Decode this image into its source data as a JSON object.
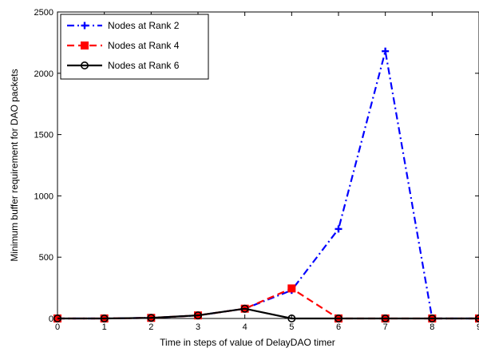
{
  "chart_data": {
    "type": "line",
    "title": "",
    "xlabel": "Time in steps of value of DelayDAO timer",
    "ylabel": "Minimum buffer requirement for DAO packets",
    "xlim": [
      0,
      9
    ],
    "ylim": [
      0,
      2500
    ],
    "x_ticks": [
      "0",
      "1",
      "2",
      "3",
      "4",
      "5",
      "6",
      "7",
      "8",
      "9"
    ],
    "y_ticks": [
      "0",
      "500",
      "1000",
      "1500",
      "2000",
      "2500"
    ],
    "grid": false,
    "legend_position": "top-left",
    "x": [
      0,
      1,
      2,
      3,
      4,
      5,
      6,
      7,
      8,
      9
    ],
    "series": [
      {
        "name": "Nodes at Rank 2",
        "color": "#0000ff",
        "line_style": "dash-dot",
        "marker": "plus",
        "values": [
          0,
          0,
          5,
          25,
          80,
          230,
          730,
          2180,
          0,
          0
        ]
      },
      {
        "name": "Nodes at Rank 4",
        "color": "#ff0000",
        "line_style": "dashed",
        "marker": "square",
        "values": [
          0,
          0,
          5,
          25,
          80,
          245,
          0,
          0,
          0,
          0
        ]
      },
      {
        "name": "Nodes at Rank 6",
        "color": "#000000",
        "line_style": "solid",
        "marker": "circle",
        "values": [
          0,
          0,
          5,
          25,
          80,
          0,
          0,
          0,
          0,
          0
        ]
      }
    ]
  }
}
